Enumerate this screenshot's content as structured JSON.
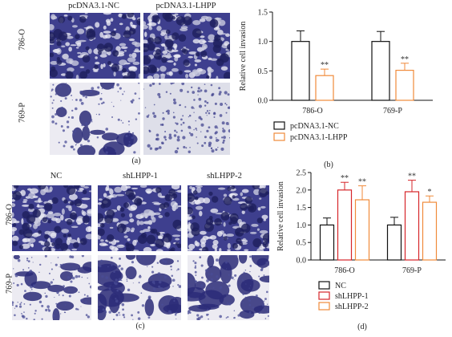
{
  "panel_a": {
    "columns": [
      "pcDNA3.1-NC",
      "pcDNA3.1-LHPP"
    ],
    "rows": [
      "786-O",
      "769-P"
    ],
    "letter": "(a)"
  },
  "panel_c": {
    "columns": [
      "NC",
      "shLHPP-1",
      "shLHPP-2"
    ],
    "rows": [
      "786-O",
      "769-P"
    ],
    "letter": "(c)"
  },
  "chart_data": [
    {
      "type": "bar",
      "panel": "(b)",
      "ylabel": "Relative cell invasion",
      "ylim": [
        0,
        1.5
      ],
      "yticks": [
        "0.0",
        "0.5",
        "1.0",
        "1.5"
      ],
      "categories": [
        "786-O",
        "769-P"
      ],
      "series": [
        {
          "name": "pcDNA3.1-NC",
          "color": "#111111",
          "values": [
            1.0,
            1.0
          ],
          "errors": [
            0.18,
            0.17
          ],
          "marks": [
            "",
            ""
          ]
        },
        {
          "name": "pcDNA3.1-LHPP",
          "color": "#f08a3a",
          "values": [
            0.42,
            0.51
          ],
          "errors": [
            0.11,
            0.12
          ],
          "marks": [
            "**",
            "**"
          ]
        }
      ],
      "legend": "bottom"
    },
    {
      "type": "bar",
      "panel": "(d)",
      "ylabel": "Relative cell invasion",
      "ylim": [
        0,
        2.5
      ],
      "yticks": [
        "0.0",
        "0.5",
        "1.0",
        "1.5",
        "2.0",
        "2.5"
      ],
      "categories": [
        "786-O",
        "769-P"
      ],
      "series": [
        {
          "name": "NC",
          "color": "#111111",
          "values": [
            1.0,
            1.0
          ],
          "errors": [
            0.2,
            0.22
          ],
          "marks": [
            "",
            ""
          ]
        },
        {
          "name": "shLHPP-1",
          "color": "#d6262a",
          "values": [
            2.0,
            1.95
          ],
          "errors": [
            0.22,
            0.33
          ],
          "marks": [
            "**",
            "**"
          ]
        },
        {
          "name": "shLHPP-2",
          "color": "#f08a3a",
          "values": [
            1.72,
            1.65
          ],
          "errors": [
            0.4,
            0.18
          ],
          "marks": [
            "**",
            "*"
          ]
        }
      ],
      "legend": "bottom"
    }
  ]
}
